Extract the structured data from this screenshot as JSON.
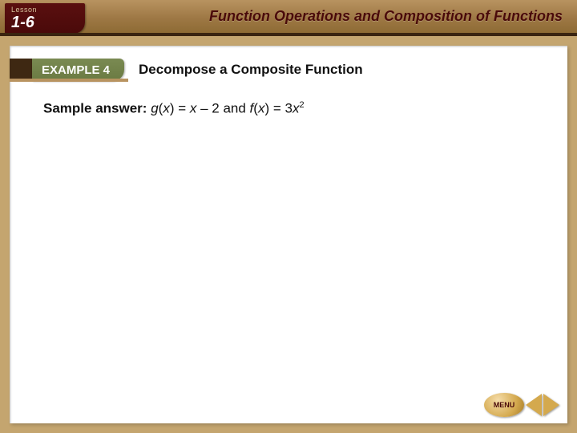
{
  "banner": {
    "lesson_label": "Lesson",
    "lesson_number": "1-6",
    "title": "Function Operations and Composition of Functions"
  },
  "example": {
    "badge_label": "EXAMPLE 4",
    "title": "Decompose a Composite Function"
  },
  "body": {
    "answer_label": "Sample answer:",
    "g_fn": "g",
    "g_arg_open": "(",
    "g_var": "x",
    "g_arg_close": ") = ",
    "g_rhs_var": "x",
    "g_rhs_rest": " – 2 and ",
    "f_fn": "f",
    "f_arg_open": "(",
    "f_var": "x",
    "f_arg_close": ") = 3",
    "f_rhs_var": "x",
    "f_exp": "2"
  },
  "nav": {
    "menu_label": "MENU"
  },
  "colors": {
    "banner_gradient_top": "#b89360",
    "banner_gradient_bottom": "#8a6830",
    "lesson_badge": "#4a0a0a",
    "example_badge": "#6a7a42",
    "frame": "#c4a56f",
    "arrow": "#d4a94e"
  }
}
